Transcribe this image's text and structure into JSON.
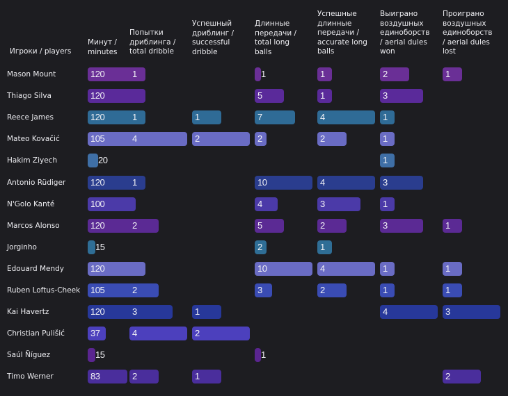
{
  "chart_data": {
    "type": "table",
    "row_header": "Игроки / players",
    "columns": [
      {
        "key": "minutes",
        "label": "Минут /\nminutes",
        "max": 120
      },
      {
        "key": "dribble_attempts",
        "label": "Попытки\nдриблинга /\ntotal dribble",
        "max": 4
      },
      {
        "key": "successful_dribble",
        "label": "Успешный\nдриблинг /\nsuccessful\ndribble",
        "max": 2
      },
      {
        "key": "long_balls",
        "label": "Длинные\nпередачи /\ntotal long\nballs",
        "max": 10
      },
      {
        "key": "accurate_long_balls",
        "label": "Успешные\nдлинные\nпередачи /\naccurate long\nballs",
        "max": 4
      },
      {
        "key": "aerial_won",
        "label": "Выиграно\nвоздушных\nединоборств\n/ aerial dules\nwon",
        "max": 4
      },
      {
        "key": "aerial_lost",
        "label": "Проиграно\nвоздушных\nединоборств\n/ aerial dules\nlost",
        "max": 3
      }
    ],
    "rows": [
      {
        "player": "Mason Mount",
        "values": [
          120,
          1,
          null,
          1,
          1,
          2,
          1
        ],
        "color": "#6a2f96"
      },
      {
        "player": "Thiago Silva",
        "values": [
          120,
          null,
          null,
          5,
          1,
          3,
          null
        ],
        "color": "#5a2a9a"
      },
      {
        "player": "Reece James",
        "values": [
          120,
          1,
          1,
          7,
          4,
          1,
          null
        ],
        "color": "#2f6b96"
      },
      {
        "player": "Mateo Kovačić",
        "values": [
          105,
          4,
          2,
          2,
          2,
          1,
          null
        ],
        "color": "#6a6cc4"
      },
      {
        "player": "Hakim Ziyech",
        "values": [
          20,
          null,
          null,
          null,
          null,
          1,
          null
        ],
        "color": "#3f6fa6"
      },
      {
        "player": "Antonio Rüdiger",
        "values": [
          120,
          1,
          null,
          10,
          4,
          3,
          null
        ],
        "color": "#2a3d8e"
      },
      {
        "player": "N'Golo Kanté",
        "values": [
          100,
          null,
          null,
          4,
          3,
          1,
          null
        ],
        "color": "#4b3aa8"
      },
      {
        "player": "Marcos Alonso",
        "values": [
          120,
          2,
          null,
          5,
          2,
          3,
          1
        ],
        "color": "#5b2a94"
      },
      {
        "player": "Jorginho",
        "values": [
          15,
          null,
          null,
          2,
          1,
          null,
          null
        ],
        "color": "#2f6e96"
      },
      {
        "player": "Edouard Mendy",
        "values": [
          120,
          null,
          null,
          10,
          4,
          1,
          1
        ],
        "color": "#6a6cc4"
      },
      {
        "player": "Ruben Loftus-Cheek",
        "values": [
          105,
          2,
          null,
          3,
          2,
          1,
          1
        ],
        "color": "#3a4cb4"
      },
      {
        "player": "Kai Havertz",
        "values": [
          120,
          3,
          1,
          null,
          null,
          4,
          3
        ],
        "color": "#27389a"
      },
      {
        "player": "Christian Pulišić",
        "values": [
          37,
          4,
          2,
          null,
          null,
          null,
          null
        ],
        "color": "#4c40bd"
      },
      {
        "player": "Saúl Ñíguez",
        "values": [
          15,
          null,
          null,
          1,
          null,
          null,
          null
        ],
        "color": "#5a2590"
      },
      {
        "player": "Timo Werner",
        "values": [
          83,
          2,
          1,
          null,
          null,
          null,
          2
        ],
        "color": "#4a2e9c"
      }
    ]
  }
}
